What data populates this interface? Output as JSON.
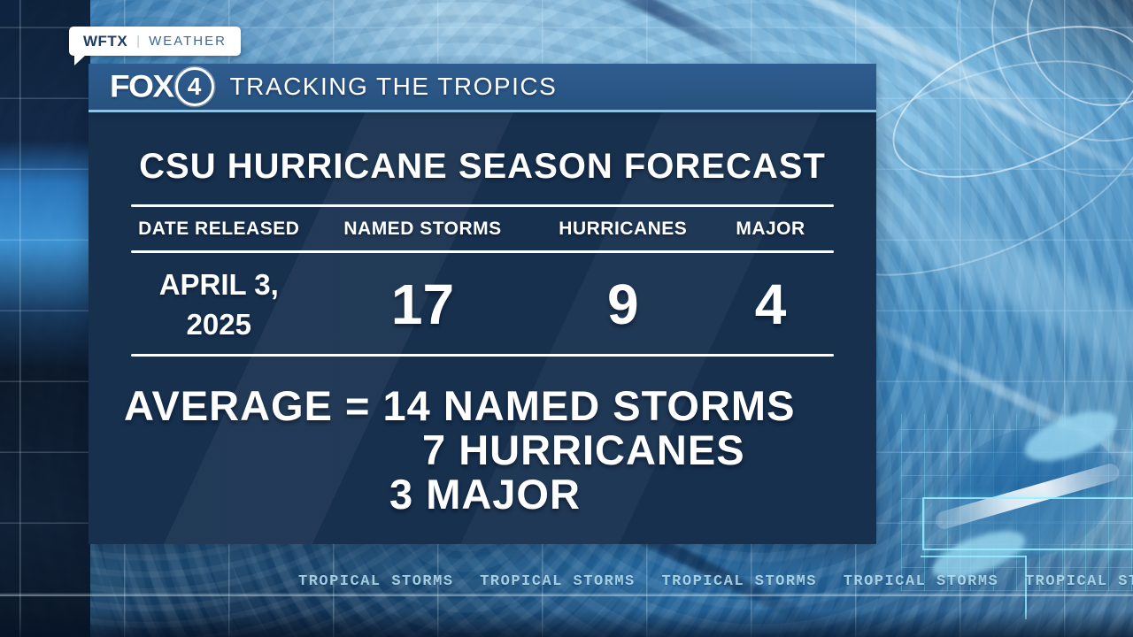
{
  "station_badge": {
    "call_sign": "WFTX",
    "divider": "|",
    "label": "WEATHER"
  },
  "header": {
    "brand_name": "FOX",
    "channel_number": "4",
    "title": "TRACKING THE TROPICS"
  },
  "forecast_panel": {
    "title": "CSU HURRICANE SEASON FORECAST",
    "columns": [
      "DATE RELEASED",
      "NAMED STORMS",
      "HURRICANES",
      "MAJOR"
    ],
    "row": {
      "date_line1": "APRIL 3,",
      "date_line2": "2025",
      "named_storms": "17",
      "hurricanes": "9",
      "major": "4"
    },
    "average": {
      "line1": "AVERAGE = 14 NAMED STORMS",
      "line2": "7 HURRICANES",
      "line3": "3 MAJOR"
    }
  },
  "background": {
    "ticker_text": "TROPICAL STORMS"
  },
  "colors": {
    "header_bar": "#2b5585",
    "panel_navy": "#16304e",
    "accent_line": "#8fc3e6",
    "badge_callsign": "#1d3c62",
    "badge_label": "#38699b",
    "ticker_text": "#a5d8e8",
    "swirl_blue": "#1c68a6"
  },
  "chart_data": {
    "type": "table",
    "title": "CSU HURRICANE SEASON FORECAST",
    "columns": [
      "DATE RELEASED",
      "NAMED STORMS",
      "HURRICANES",
      "MAJOR"
    ],
    "rows": [
      [
        "APRIL 3, 2025",
        17,
        9,
        4
      ]
    ],
    "averages": {
      "named_storms": 14,
      "hurricanes": 7,
      "major": 3
    },
    "annotations": [
      "AVERAGE = 14 NAMED STORMS",
      "7 HURRICANES",
      "3 MAJOR"
    ]
  }
}
